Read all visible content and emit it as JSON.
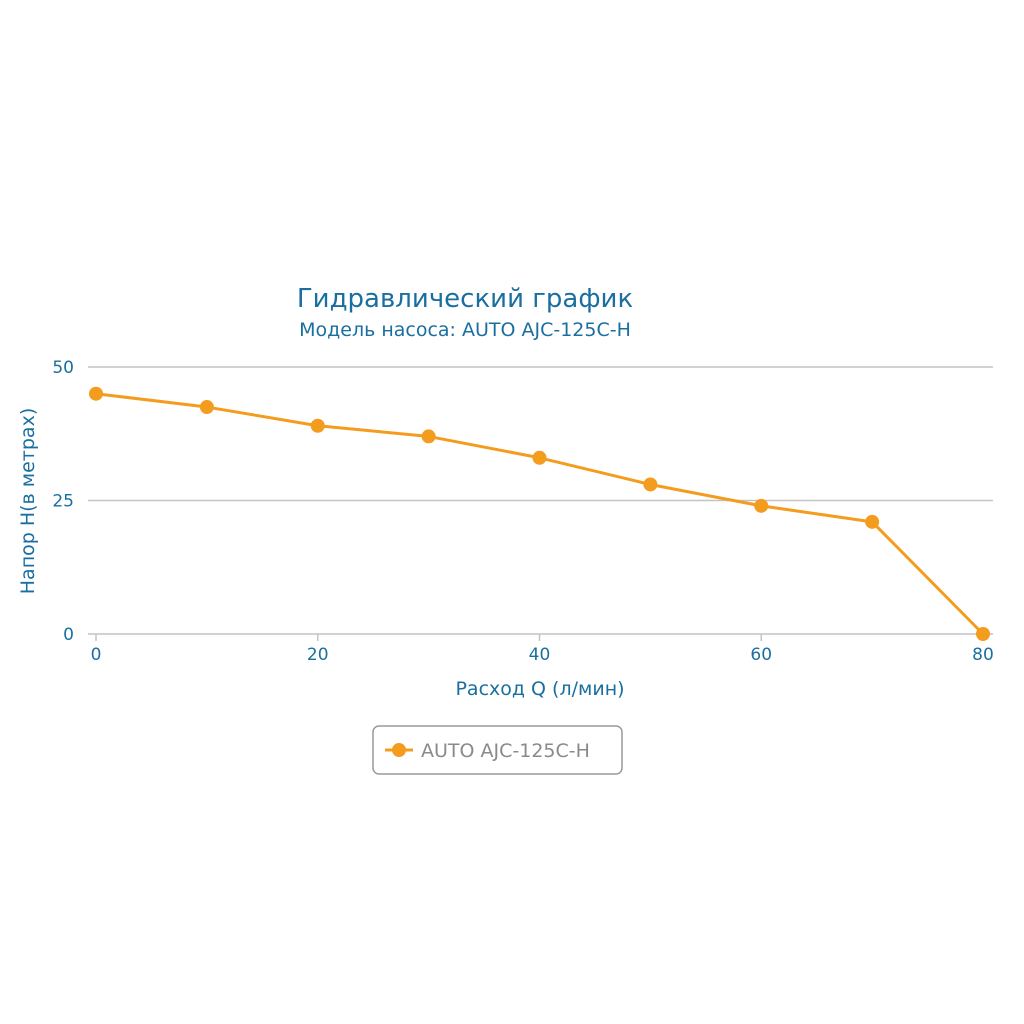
{
  "chart_data": {
    "type": "line",
    "title": "Гидравлический график",
    "subtitle": "Модель насоса: AUTO AJC-125C-H",
    "xlabel": "Расход Q (л/мин)",
    "ylabel": "Напор H(в метрах)",
    "xlim": [
      0,
      80
    ],
    "ylim": [
      0,
      50
    ],
    "x_ticks": [
      0,
      20,
      40,
      60,
      80
    ],
    "y_ticks": [
      0,
      25,
      50
    ],
    "grid": true,
    "legend_position": "bottom-center",
    "series": [
      {
        "name": "AUTO AJC-125C-H",
        "color": "#f39c1e",
        "x": [
          0,
          10,
          20,
          30,
          40,
          50,
          60,
          70,
          80
        ],
        "y": [
          45,
          42.5,
          39,
          37,
          33,
          28,
          24,
          21,
          0
        ]
      }
    ]
  }
}
